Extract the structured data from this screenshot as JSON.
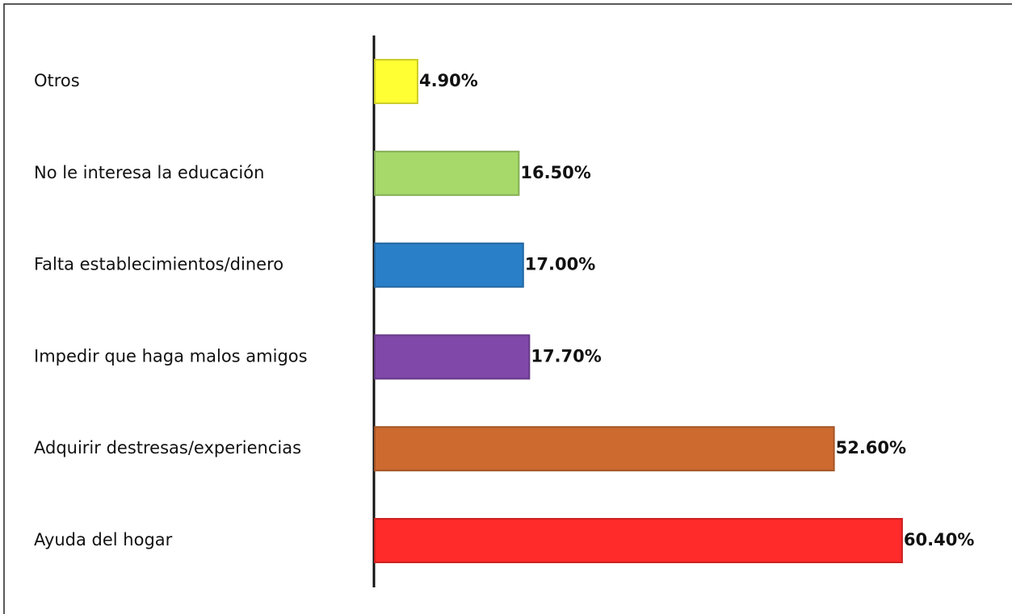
{
  "chart_data": {
    "type": "bar",
    "orientation": "horizontal",
    "categories": [
      "Otros",
      "No le interesa la educación",
      "Falta establecimientos/dinero",
      "Impedir que haga malos amigos",
      "Adquirir destresas/experiencias",
      "Ayuda del hogar"
    ],
    "values": [
      4.9,
      16.5,
      17.0,
      17.7,
      52.6,
      60.4
    ],
    "value_labels": [
      "4.90%",
      "16.50%",
      "17.00%",
      "17.70%",
      "52.60%",
      "60.40%"
    ],
    "colors": [
      "#ffff33",
      "#a6d96a",
      "#2a80c8",
      "#8048a8",
      "#cc6a30",
      "#ff2a2a"
    ]
  }
}
